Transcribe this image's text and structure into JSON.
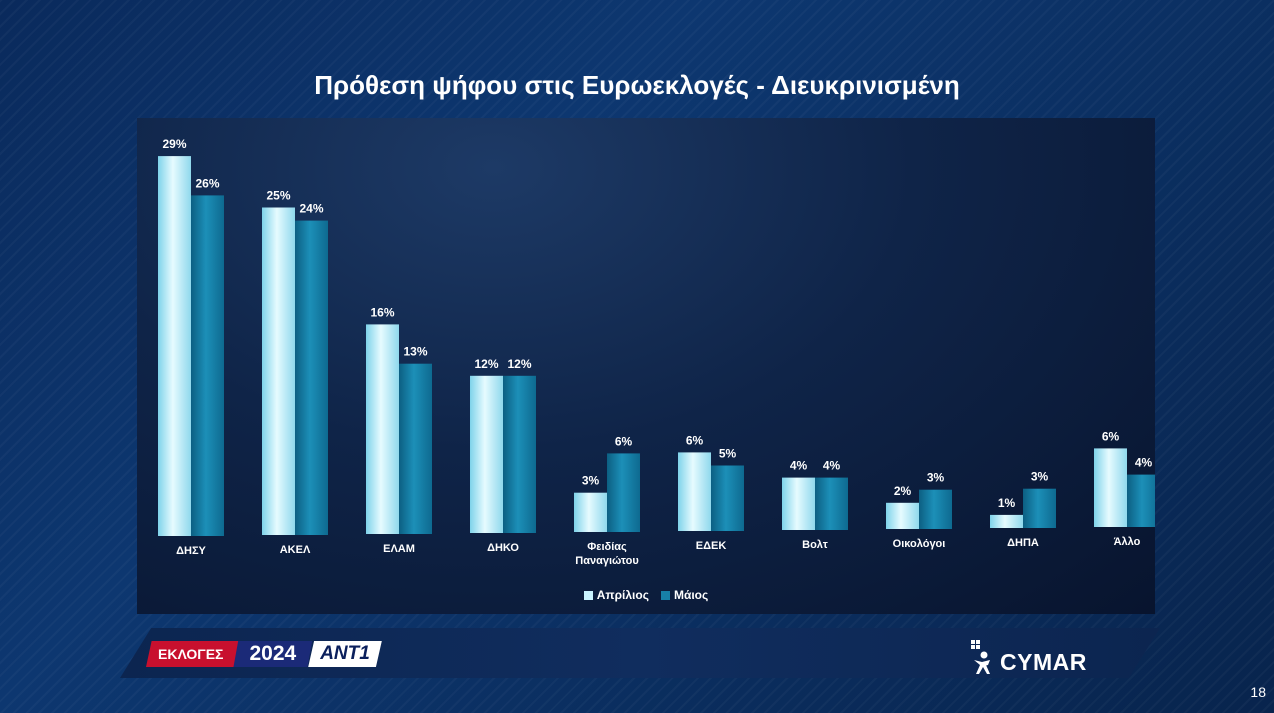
{
  "title": "Πρόθεση ψήφου στις Ευρωεκλογές - Διευκρινισμένη",
  "chart_data": {
    "type": "bar",
    "categories": [
      "ΔΗΣΥ",
      "ΑΚΕΛ",
      "ΕΛΑΜ",
      "ΔΗΚΟ",
      "Φειδίας Παναγιώτου",
      "ΕΔΕΚ",
      "Βολτ",
      "Οικολόγοι",
      "ΔΗΠΑ",
      "Άλλο"
    ],
    "category_lines": [
      [
        "ΔΗΣΥ"
      ],
      [
        "ΑΚΕΛ"
      ],
      [
        "ΕΛΑΜ"
      ],
      [
        "ΔΗΚΟ"
      ],
      [
        "Φειδίας",
        "Παναγιώτου"
      ],
      [
        "ΕΔΕΚ"
      ],
      [
        "Βολτ"
      ],
      [
        "Οικολόγοι"
      ],
      [
        "ΔΗΠΑ"
      ],
      [
        "Άλλο"
      ]
    ],
    "series": [
      {
        "name": "Απρίλιος",
        "values": [
          29,
          25,
          16,
          12,
          3,
          6,
          4,
          2,
          1,
          6
        ],
        "labels": [
          "29%",
          "25%",
          "16%",
          "12%",
          "3%",
          "6%",
          "4%",
          "2%",
          "1%",
          "6%"
        ],
        "color": "#c9f3ff"
      },
      {
        "name": "Μάιος",
        "values": [
          26,
          24,
          13,
          12,
          6,
          5,
          4,
          3,
          3,
          4
        ],
        "labels": [
          "26%",
          "24%",
          "13%",
          "12%",
          "6%",
          "5%",
          "4%",
          "3%",
          "3%",
          "4%"
        ],
        "color": "#1780a8"
      }
    ],
    "unit": "%",
    "ylim": [
      0,
      30
    ],
    "grid": false,
    "legend_position": "bottom-center"
  },
  "footer": {
    "brand_tag": "ΕΚΛΟΓΕΣ",
    "brand_year": "2024",
    "brand_channel": "ANT1",
    "pollster": "CYMAR",
    "page_number": "18"
  }
}
